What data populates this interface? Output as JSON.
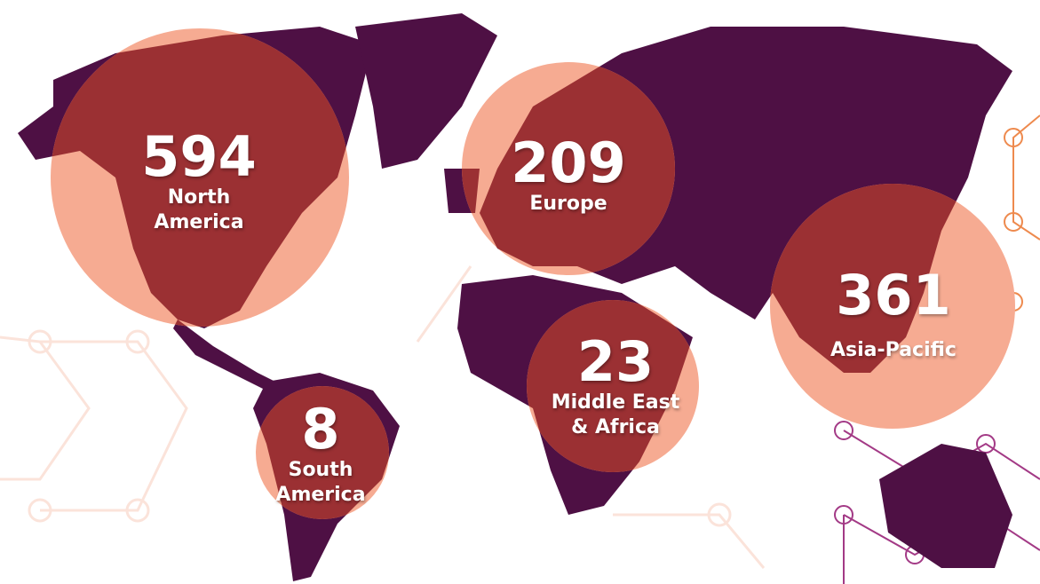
{
  "colors": {
    "land": "#4E1044",
    "bubble": "#F6AB92",
    "bubble_land": "#9B3033",
    "hex_light": "#FBE3DA",
    "hex_purple": "#A33A86",
    "hex_orange": "#EE8A4E"
  },
  "regions": [
    {
      "id": "north-america",
      "value": "594",
      "name": "North America",
      "line1": "North",
      "line2": "America"
    },
    {
      "id": "europe",
      "value": "209",
      "name": "Europe",
      "line1": "Europe",
      "line2": ""
    },
    {
      "id": "asia-pacific",
      "value": "361",
      "name": "Asia-Pacific",
      "line1": "Asia-Pacific",
      "line2": ""
    },
    {
      "id": "middle-east-africa",
      "value": "23",
      "name": "Middle East & Africa",
      "line1": "Middle East",
      "line2": "& Africa"
    },
    {
      "id": "south-america",
      "value": "8",
      "name": "South America",
      "line1": "South",
      "line2": "America"
    }
  ]
}
